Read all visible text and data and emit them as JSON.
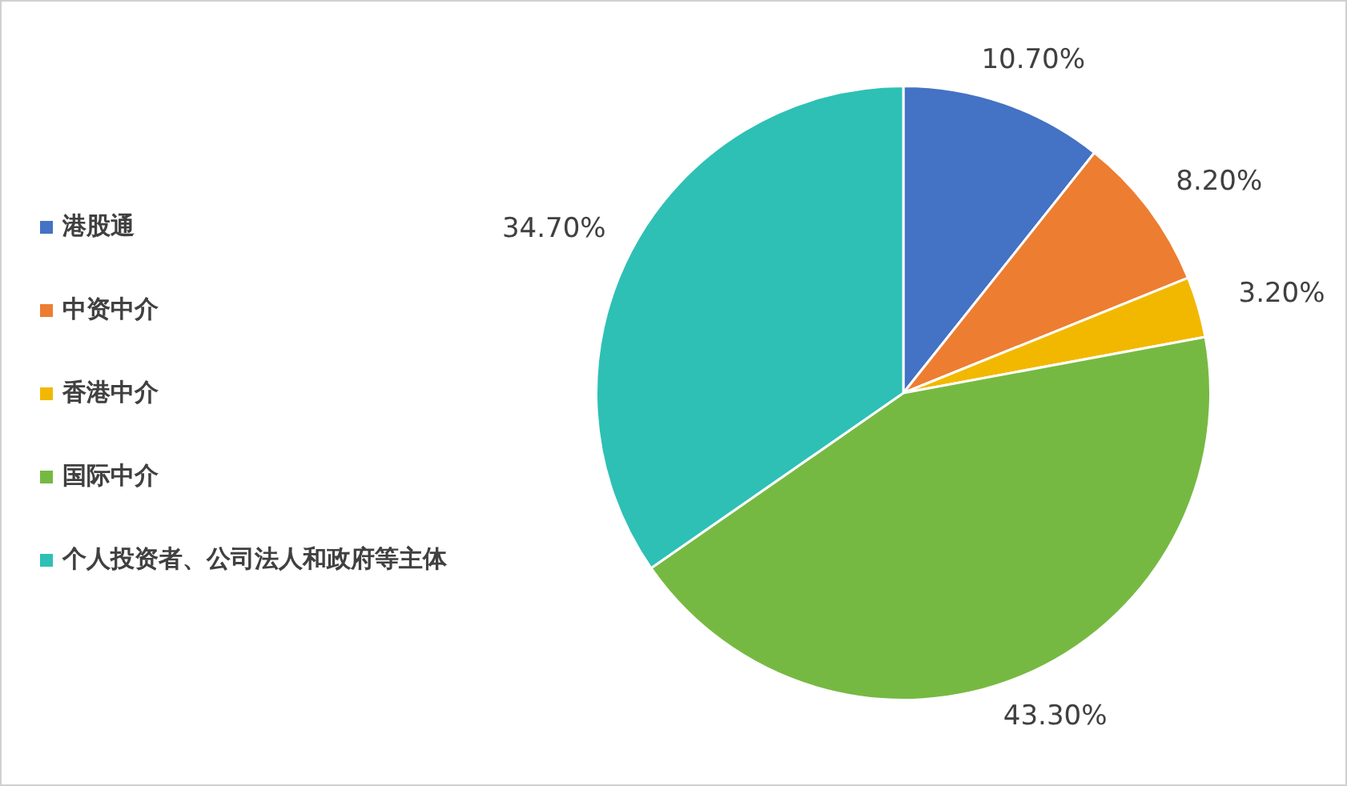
{
  "chart_data": {
    "type": "pie",
    "categories": [
      "港股通",
      "中资中介",
      "香港中介",
      "国际中介",
      "个人投资者、公司法人和政府等主体"
    ],
    "values": [
      10.7,
      8.2,
      3.2,
      43.3,
      34.7
    ],
    "colors": [
      "#4472c4",
      "#ed7d31",
      "#f2b800",
      "#76b942",
      "#2ec0b5"
    ],
    "value_labels": [
      "10.70%",
      "8.20%",
      "3.20%",
      "43.30%",
      "34.70%"
    ],
    "legend": "left"
  }
}
